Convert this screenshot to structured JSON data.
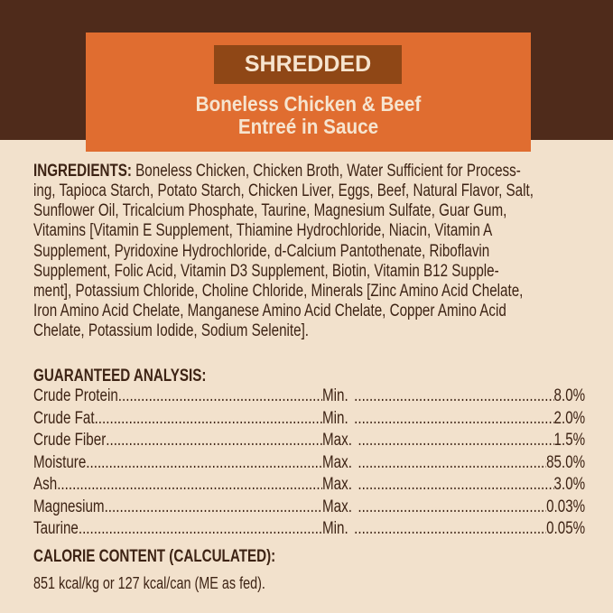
{
  "header": {
    "tag": "SHREDDED",
    "subtitle_lines": [
      "Boneless Chicken & Beef",
      "Entreé in Sauce"
    ]
  },
  "ingredients": {
    "label": "INGREDIENTS:",
    "lines": [
      " Boneless Chicken, Chicken Broth, Water Sufficient for Process-",
      "ing, Tapioca Starch, Potato Starch, Chicken Liver, Eggs, Beef, Natural Flavor, Salt,",
      "Sunflower Oil, Tricalcium Phosphate, Taurine, Magnesium Sulfate, Guar Gum,",
      "Vitamins [Vitamin E Supplement, Thiamine Hydrochloride, Niacin, Vitamin A",
      "Supplement, Pyridoxine Hydrochloride, d-Calcium Pantothenate, Riboflavin",
      "Supplement, Folic Acid, Vitamin D3 Supplement, Biotin, Vitamin B12 Supple-",
      "ment], Potassium Chloride, Choline Chloride, Minerals [Zinc Amino Acid Chelate,",
      "Iron Amino Acid Chelate, Manganese Amino Acid Chelate, Copper Amino Acid",
      "Chelate, Potassium Iodide, Sodium Selenite]."
    ]
  },
  "analysis": {
    "title": "GUARANTEED ANALYSIS:",
    "rows": [
      {
        "name": "Crude Protein",
        "qual": "Min.",
        "value": "8.0%"
      },
      {
        "name": "Crude Fat",
        "qual": "Min.",
        "value": "2.0%"
      },
      {
        "name": "Crude Fiber",
        "qual": "Max.",
        "value": "1.5%"
      },
      {
        "name": "Moisture",
        "qual": "Max.",
        "value": "85.0%"
      },
      {
        "name": "Ash",
        "qual": "Max.",
        "value": "3.0%"
      },
      {
        "name": "Magnesium",
        "qual": "Max.",
        "value": "0.03%"
      },
      {
        "name": "Taurine",
        "qual": "Min.",
        "value": "0.05%"
      }
    ]
  },
  "calorie": {
    "title": "CALORIE CONTENT (CALCULATED):",
    "text": "851 kcal/kg or 127 kcal/can (ME as fed)."
  },
  "colors": {
    "band": "#4f2b1b",
    "orange": "#e06d30",
    "tag": "#8f4716",
    "background": "#f2e1cc",
    "text": "#3d2314"
  }
}
